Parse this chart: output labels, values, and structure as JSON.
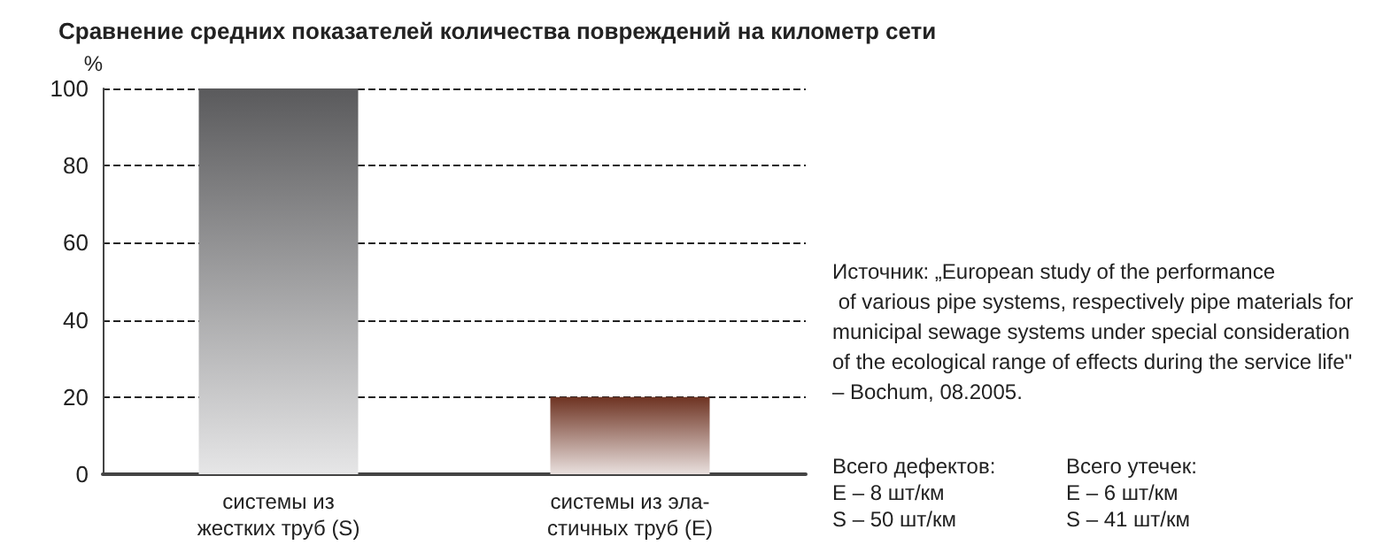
{
  "chart_data": {
    "type": "bar",
    "title": "Сравнение средних показателей количества повреждений на километр сети",
    "ylabel": "%",
    "categories": [
      "системы из\nжестких труб (S)",
      "системы из эла-\nстичных труб (E)"
    ],
    "values": [
      100,
      20
    ],
    "colors": [
      "#5a5a5c",
      "#6e3322"
    ],
    "ylim": [
      0,
      100
    ],
    "yticks": [
      0,
      20,
      40,
      60,
      80,
      100
    ],
    "grid": "y",
    "annotations": [
      "Источник: „European study of the performance of various pipe systems, respectively pipe materials for municipal sewage systems under special consideration of the ecological range of effects during the service life\" – Bochum, 08.2005.",
      "Всего дефектов:\nE – 8 шт/км\nS – 50 шт/км",
      "Всего утечек:\nE – 6 шт/км\nS – 41 шт/км"
    ]
  }
}
